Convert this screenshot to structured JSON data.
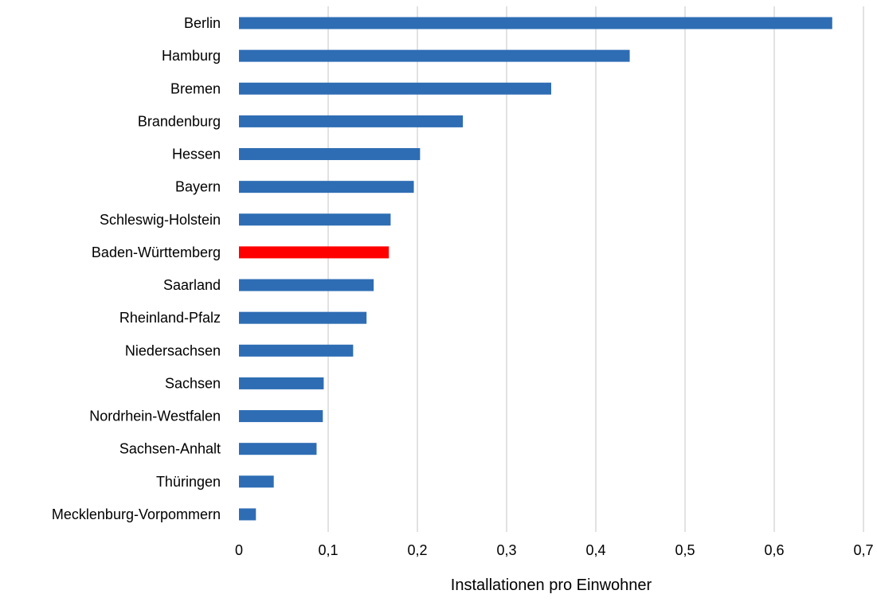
{
  "chart_data": {
    "type": "bar",
    "orientation": "horizontal",
    "categories": [
      "Berlin",
      "Hamburg",
      "Bremen",
      "Brandenburg",
      "Hessen",
      "Bayern",
      "Schleswig-Holstein",
      "Baden-Württemberg",
      "Saarland",
      "Rheinland-Pfalz",
      "Niedersachsen",
      "Sachsen",
      "Nordrhein-Westfalen",
      "Sachsen-Anhalt",
      "Thüringen",
      "Mecklenburg-Vorpommern"
    ],
    "values": [
      0.665,
      0.438,
      0.35,
      0.251,
      0.203,
      0.196,
      0.17,
      0.168,
      0.151,
      0.143,
      0.128,
      0.095,
      0.094,
      0.087,
      0.039,
      0.019
    ],
    "highlight_index": 7,
    "colors": {
      "bar": "#2E6DB4",
      "highlight": "#FF0000",
      "grid": "#D9D9D9"
    },
    "xlabel": "Installationen pro Einwohner",
    "ylabel": "",
    "xlim": [
      0,
      0.7
    ],
    "xticks": [
      0,
      0.1,
      0.2,
      0.3,
      0.4,
      0.5,
      0.6,
      0.7
    ],
    "xtick_labels": [
      "0",
      "0,1",
      "0,2",
      "0,3",
      "0,4",
      "0,5",
      "0,6",
      "0,7"
    ],
    "grid": "vertical",
    "legend": "none"
  }
}
